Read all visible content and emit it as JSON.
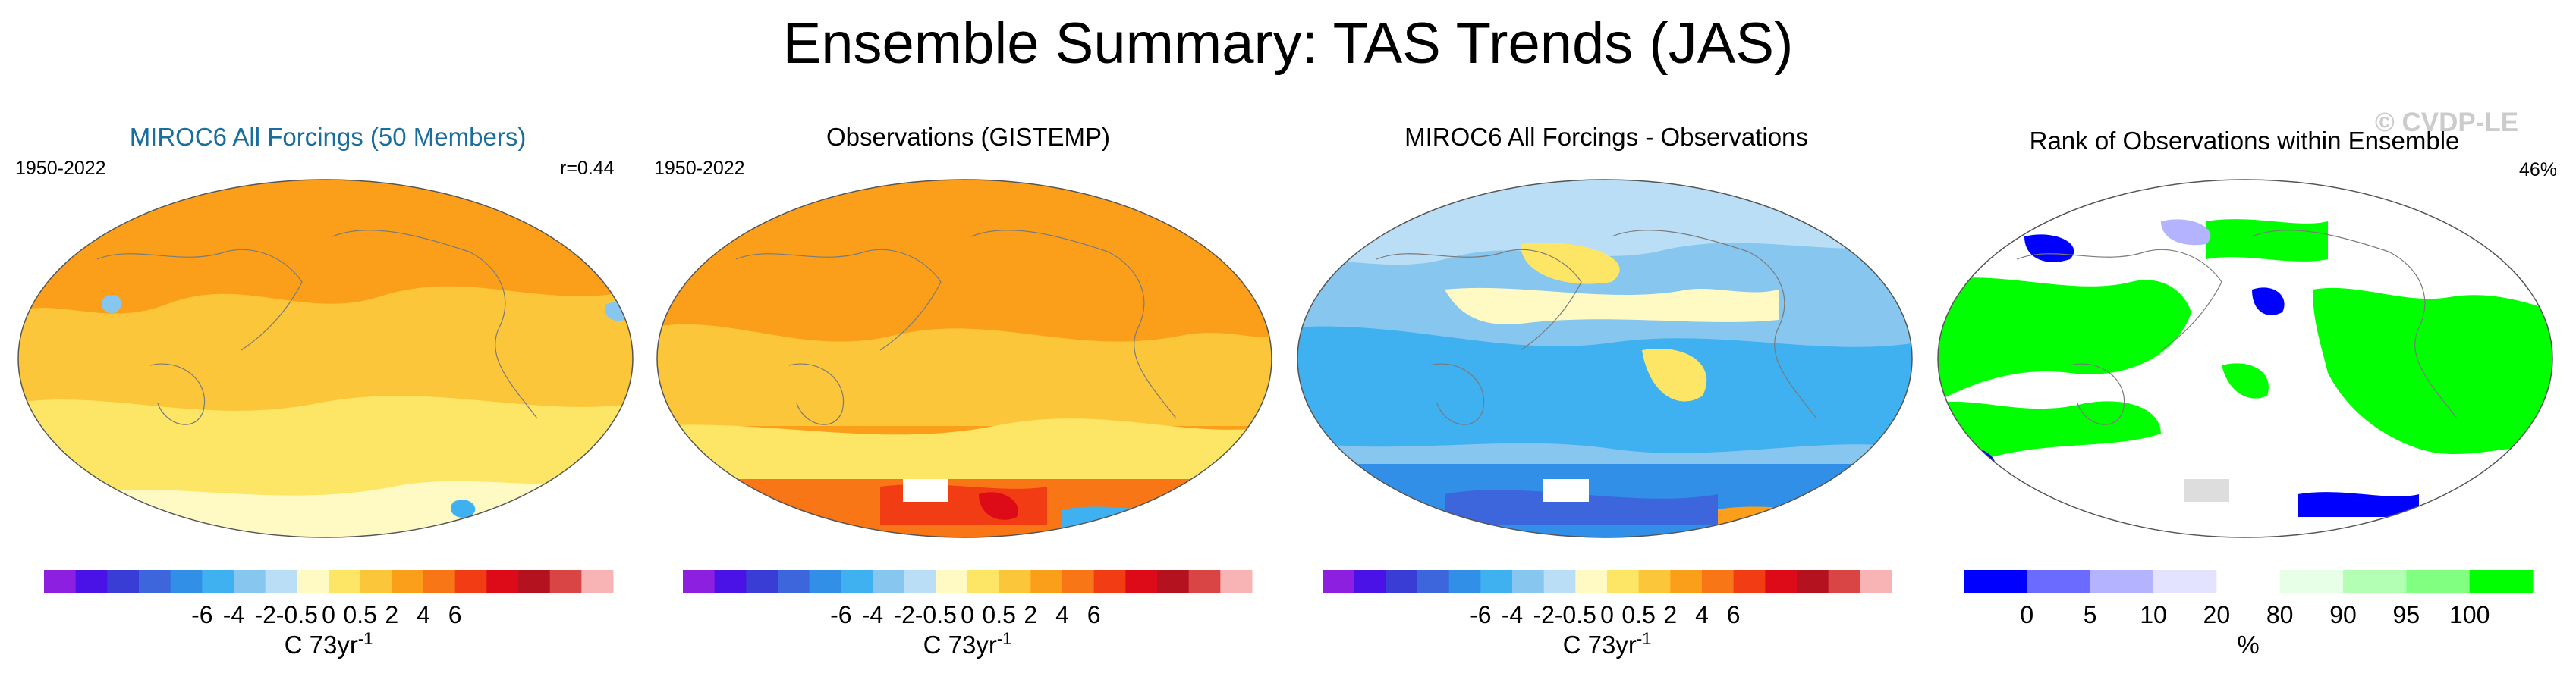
{
  "title": "Ensemble Summary: TAS Trends (JAS)",
  "watermark": "© CVDP-LE",
  "colors": {
    "title_blue": "#1a6e9e",
    "land_outline": "#7a7a7a"
  },
  "panels": [
    {
      "title": "MIROC6 All Forcings (50 Members)",
      "period": "1950-2022",
      "stat": "r=0.44",
      "colorbar": {
        "colors": [
          "#8d1fe0",
          "#4a12e6",
          "#3a3cd6",
          "#3d66dd",
          "#318fe8",
          "#3fb0f0",
          "#87c6ee",
          "#b9def5",
          "#fff9c4",
          "#fde566",
          "#fcc63b",
          "#fb9f1a",
          "#f97616",
          "#f23c13",
          "#dd0a17",
          "#b3121e",
          "#d94545",
          "#f8b4b4"
        ],
        "tick_labels": [
          "-6",
          "-4",
          "-2",
          "-0.5",
          "0",
          "0.5",
          "2",
          "4",
          "6"
        ],
        "label": "C 73yr",
        "label_sup": "-1"
      }
    },
    {
      "title": "Observations (GISTEMP)",
      "period": "1950-2022",
      "stat": "",
      "colorbar": {
        "colors": [
          "#8d1fe0",
          "#4a12e6",
          "#3a3cd6",
          "#3d66dd",
          "#318fe8",
          "#3fb0f0",
          "#87c6ee",
          "#b9def5",
          "#fff9c4",
          "#fde566",
          "#fcc63b",
          "#fb9f1a",
          "#f97616",
          "#f23c13",
          "#dd0a17",
          "#b3121e",
          "#d94545",
          "#f8b4b4"
        ],
        "tick_labels": [
          "-6",
          "-4",
          "-2",
          "-0.5",
          "0",
          "0.5",
          "2",
          "4",
          "6"
        ],
        "label": "C 73yr",
        "label_sup": "-1"
      }
    },
    {
      "title": "MIROC6 All Forcings - Observations",
      "period": "",
      "stat": "",
      "colorbar": {
        "colors": [
          "#8d1fe0",
          "#4a12e6",
          "#3a3cd6",
          "#3d66dd",
          "#318fe8",
          "#3fb0f0",
          "#87c6ee",
          "#b9def5",
          "#fff9c4",
          "#fde566",
          "#fcc63b",
          "#fb9f1a",
          "#f97616",
          "#f23c13",
          "#dd0a17",
          "#b3121e",
          "#d94545",
          "#f8b4b4"
        ],
        "tick_labels": [
          "-6",
          "-4",
          "-2",
          "-0.5",
          "0",
          "0.5",
          "2",
          "4",
          "6"
        ],
        "label": "C 73yr",
        "label_sup": "-1"
      }
    },
    {
      "title": "Rank of Observations within Ensemble",
      "period": "",
      "stat": "46%",
      "colorbar": {
        "colors": [
          "#0000ff",
          "#6b6bff",
          "#b3b3ff",
          "#e3e3ff",
          "#ffffff",
          "#e6ffe6",
          "#b3ffb3",
          "#80ff80",
          "#00ff00"
        ],
        "tick_labels": [
          "0",
          "5",
          "10",
          "20",
          "80",
          "90",
          "95",
          "100"
        ],
        "label": "%",
        "label_sup": ""
      }
    }
  ],
  "chart_data": [
    {
      "type": "heatmap",
      "title": "MIROC6 All Forcings (50 Members)",
      "period": "1950-2022",
      "pattern_correlation": 0.44,
      "units": "C 73yr-1",
      "levels": [
        -6,
        -4,
        -2,
        -0.5,
        0,
        0.5,
        2,
        4,
        6
      ],
      "dominant_value_range": [
        0.5,
        2
      ],
      "notes": "Warming nearly everywhere; cooling spots near Antarctica and North Atlantic"
    },
    {
      "type": "heatmap",
      "title": "Observations (GISTEMP)",
      "period": "1950-2022",
      "units": "C 73yr-1",
      "levels": [
        -6,
        -4,
        -2,
        -0.5,
        0,
        0.5,
        2,
        4,
        6
      ],
      "dominant_value_range": [
        0.5,
        2
      ],
      "notes": "Strong warming over Antarctic Peninsula (>2); cooling in parts of Southern Ocean"
    },
    {
      "type": "heatmap",
      "title": "MIROC6 All Forcings - Observations",
      "units": "C 73yr-1",
      "levels": [
        -6,
        -4,
        -2,
        -0.5,
        0,
        0.5,
        2,
        4,
        6
      ],
      "dominant_value_range": [
        -2,
        0.5
      ],
      "notes": "Model minus obs mostly negative over oceans; strong negative over Antarctica"
    },
    {
      "type": "heatmap",
      "title": "Rank of Observations within Ensemble",
      "units": "%",
      "levels": [
        0,
        5,
        10,
        20,
        80,
        90,
        95,
        100
      ],
      "area_fraction_within_20_80": 0.46,
      "notes": "Large areas above 100th percentile (green) over oceans; low ranks (blue) in Eurasia, N. America, Southern Ocean"
    }
  ]
}
